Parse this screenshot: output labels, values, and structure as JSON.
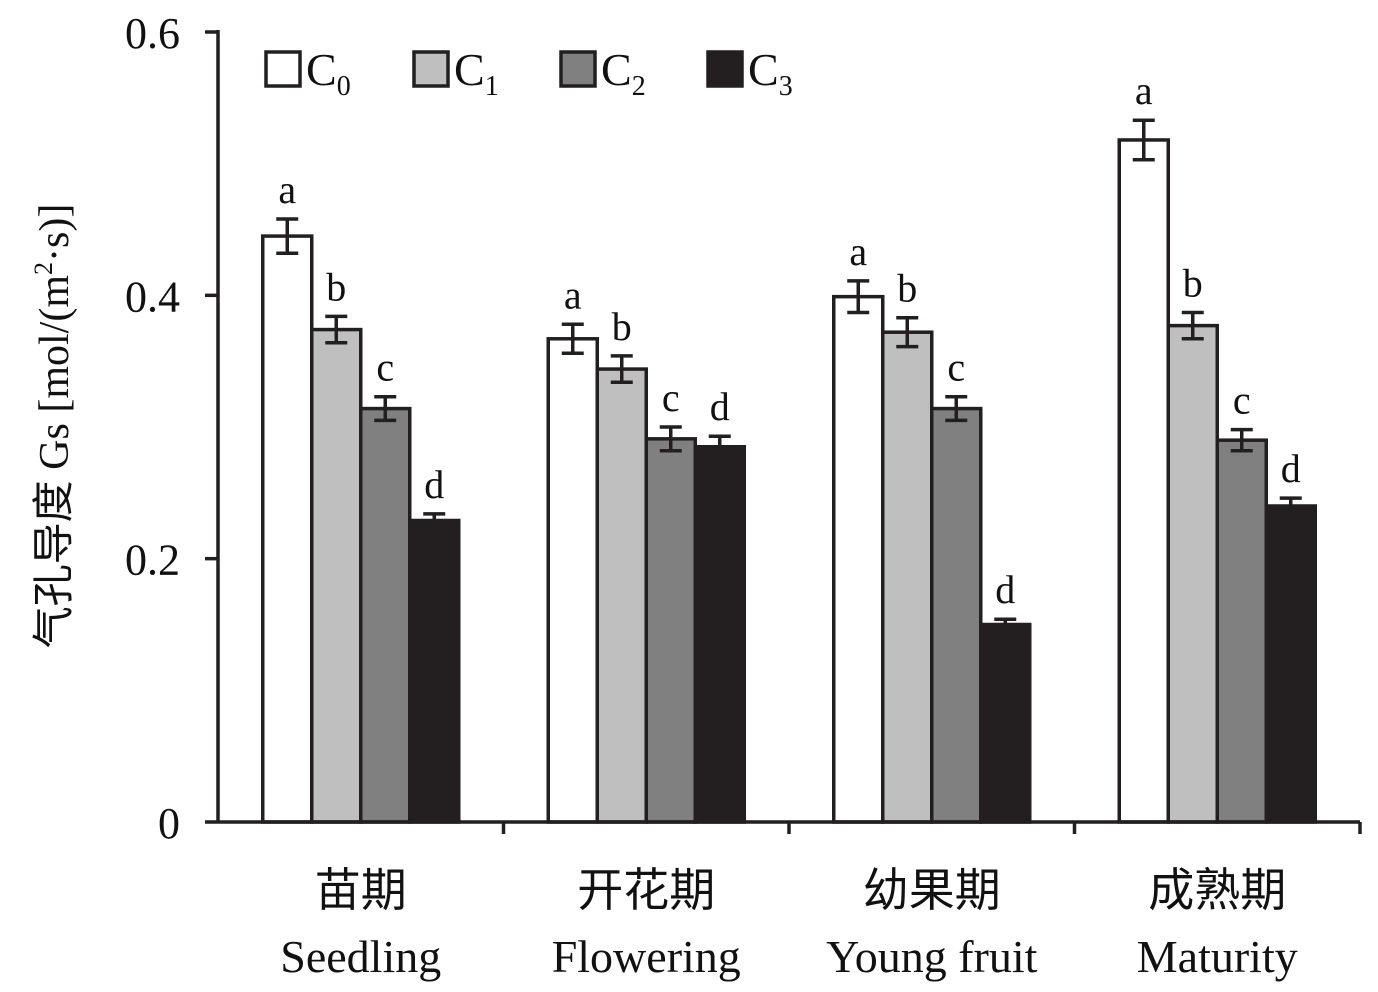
{
  "chart_data": {
    "type": "bar",
    "ylabel_cn": "气孔导度",
    "ylabel_var": "Gs",
    "ylabel_unit_open": "[mol/(m",
    "ylabel_unit_sup": "2",
    "ylabel_unit_close": "·s)]",
    "ylim": [
      0,
      0.6
    ],
    "yticks": [
      {
        "value": 0,
        "label": "0"
      },
      {
        "value": 0.2,
        "label": "0.2"
      },
      {
        "value": 0.4,
        "label": "0.4"
      },
      {
        "value": 0.6,
        "label": "0.6"
      }
    ],
    "categories": [
      {
        "cn": "苗期",
        "en": "Seedling"
      },
      {
        "cn": "开花期",
        "en": "Flowering"
      },
      {
        "cn": "幼果期",
        "en": "Young fruit"
      },
      {
        "cn": "成熟期",
        "en": "Maturity"
      }
    ],
    "series": [
      {
        "base": "C",
        "sub": "0",
        "color": "#ffffff",
        "values": [
          0.445,
          0.367,
          0.399,
          0.518
        ],
        "errors": [
          0.013,
          0.011,
          0.012,
          0.015
        ],
        "letters": [
          "a",
          "a",
          "a",
          "a"
        ]
      },
      {
        "base": "C",
        "sub": "1",
        "color": "#bfbfbf",
        "values": [
          0.374,
          0.344,
          0.372,
          0.377
        ],
        "errors": [
          0.01,
          0.01,
          0.011,
          0.01
        ],
        "letters": [
          "b",
          "b",
          "b",
          "b"
        ]
      },
      {
        "base": "C",
        "sub": "2",
        "color": "#808080",
        "values": [
          0.314,
          0.291,
          0.314,
          0.29
        ],
        "errors": [
          0.009,
          0.009,
          0.009,
          0.008
        ],
        "letters": [
          "c",
          "c",
          "c",
          "c"
        ]
      },
      {
        "base": "C",
        "sub": "3",
        "color": "#231f20",
        "values": [
          0.229,
          0.285,
          0.15,
          0.24
        ],
        "errors": [
          0.005,
          0.008,
          0.004,
          0.006
        ],
        "letters": [
          "d",
          "d",
          "d",
          "d"
        ]
      }
    ]
  }
}
